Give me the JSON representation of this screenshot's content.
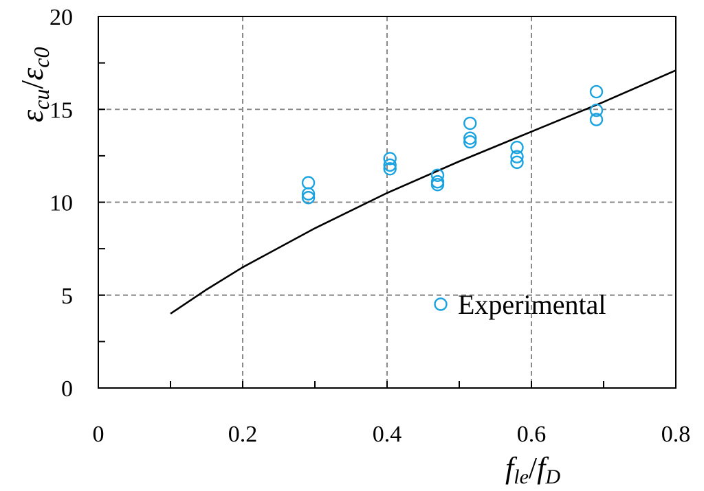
{
  "chart_data": {
    "type": "scatter",
    "xlim": [
      0,
      0.8
    ],
    "ylim": [
      0,
      20
    ],
    "x_ticks": [
      "0",
      "0.2",
      "0.4",
      "0.6",
      "0.8"
    ],
    "y_ticks": [
      "0",
      "5",
      "10",
      "15",
      "20"
    ],
    "xlabel": {
      "main": "f",
      "sub1": "le",
      "slash": "/",
      "main2": "f",
      "sub2": "D"
    },
    "ylabel": {
      "main": "ε",
      "sub1": "cu",
      "slash": "/",
      "main2": "ε",
      "sub2": "c0"
    },
    "grid": true,
    "legend_position": "bottom-right",
    "series": [
      {
        "name": "Experimental",
        "kind": "markers",
        "color": "#1aa3e0",
        "points": [
          {
            "x": 0.291,
            "y": 11.05
          },
          {
            "x": 0.291,
            "y": 10.45
          },
          {
            "x": 0.291,
            "y": 10.25
          },
          {
            "x": 0.404,
            "y": 12.35
          },
          {
            "x": 0.404,
            "y": 12.0
          },
          {
            "x": 0.404,
            "y": 11.8
          },
          {
            "x": 0.47,
            "y": 11.45
          },
          {
            "x": 0.47,
            "y": 11.1
          },
          {
            "x": 0.47,
            "y": 10.95
          },
          {
            "x": 0.515,
            "y": 14.25
          },
          {
            "x": 0.515,
            "y": 13.45
          },
          {
            "x": 0.515,
            "y": 13.25
          },
          {
            "x": 0.58,
            "y": 12.95
          },
          {
            "x": 0.58,
            "y": 12.45
          },
          {
            "x": 0.58,
            "y": 12.15
          },
          {
            "x": 0.69,
            "y": 15.95
          },
          {
            "x": 0.69,
            "y": 14.95
          },
          {
            "x": 0.69,
            "y": 14.45
          }
        ]
      },
      {
        "kind": "line",
        "color": "#000000",
        "points": [
          {
            "x": 0.1,
            "y": 4.0
          },
          {
            "x": 0.15,
            "y": 5.3
          },
          {
            "x": 0.2,
            "y": 6.5
          },
          {
            "x": 0.3,
            "y": 8.6
          },
          {
            "x": 0.4,
            "y": 10.5
          },
          {
            "x": 0.5,
            "y": 12.2
          },
          {
            "x": 0.6,
            "y": 13.8
          },
          {
            "x": 0.7,
            "y": 15.4
          },
          {
            "x": 0.8,
            "y": 17.1
          }
        ]
      }
    ]
  }
}
